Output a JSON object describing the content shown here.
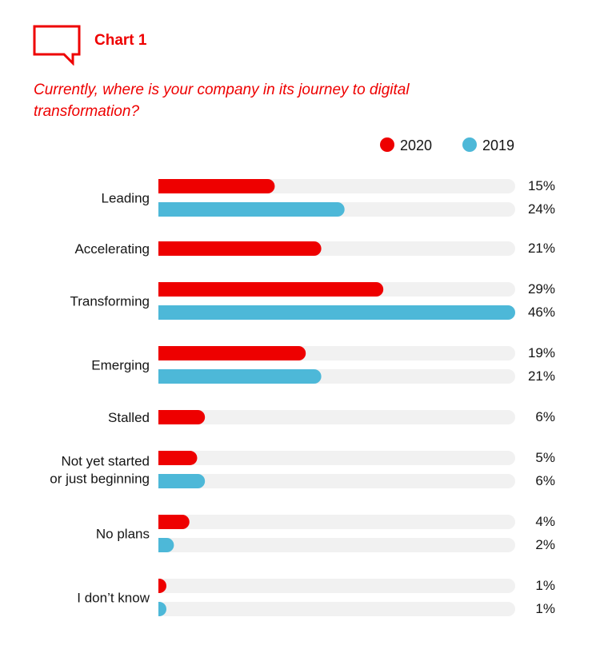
{
  "header": {
    "chart_label": "Chart 1",
    "question": "Currently, where is your company in its journey to digital transformation?"
  },
  "colors": {
    "accent": "#ee0000",
    "series_2020": "#ee0000",
    "series_2019": "#4db8d8",
    "track": "#f1f1f1"
  },
  "chart_data": {
    "type": "bar",
    "orientation": "horizontal",
    "title": "Currently, where is your company in its journey to digital transformation?",
    "xlabel": "",
    "ylabel": "",
    "xlim": [
      0,
      46
    ],
    "legend_position": "top-right",
    "categories": [
      "Leading",
      "Accelerating",
      "Transforming",
      "Emerging",
      "Stalled",
      "Not yet started or just beginning",
      "No plans",
      "I don’t know"
    ],
    "category_lines": [
      [
        "Leading"
      ],
      [
        "Accelerating"
      ],
      [
        "Transforming"
      ],
      [
        "Emerging"
      ],
      [
        "Stalled"
      ],
      [
        "Not yet started",
        "or just beginning"
      ],
      [
        "No plans"
      ],
      [
        "I don’t know"
      ]
    ],
    "series": [
      {
        "name": "2020",
        "values": [
          15,
          21,
          29,
          19,
          6,
          5,
          4,
          1
        ],
        "labels": [
          "15%",
          "21%",
          "29%",
          "19%",
          "6%",
          "5%",
          "4%",
          "1%"
        ]
      },
      {
        "name": "2019",
        "values": [
          24,
          null,
          46,
          21,
          null,
          6,
          2,
          1
        ],
        "labels": [
          "24%",
          null,
          "46%",
          "21%",
          null,
          "6%",
          "2%",
          "1%"
        ]
      }
    ]
  }
}
